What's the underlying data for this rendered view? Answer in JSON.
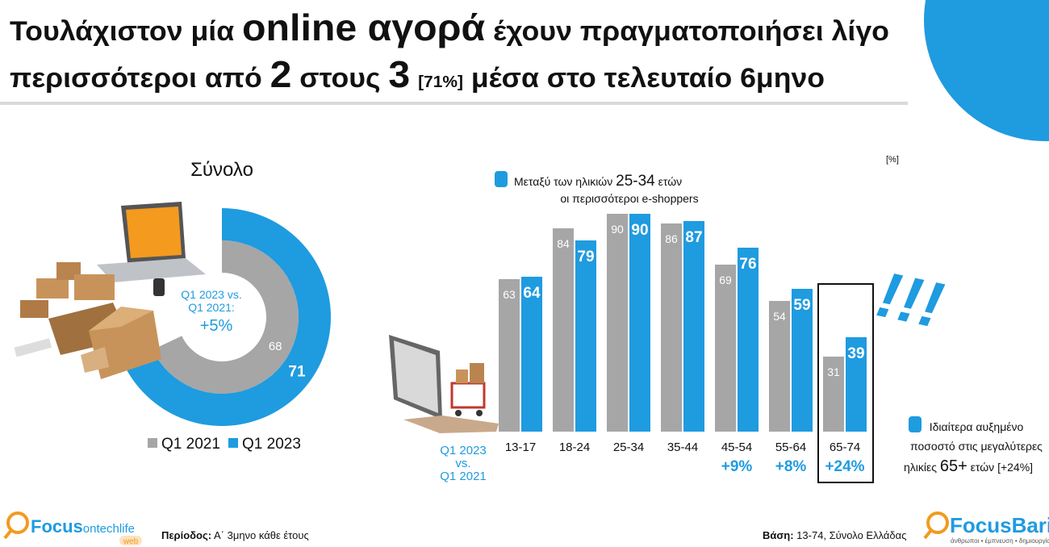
{
  "title": {
    "line1": [
      "Τουλάχιστον μία",
      "online αγορά",
      "έχουν πραγματοποιήσει λίγο"
    ],
    "line2": [
      "περισσότεροι από",
      "2",
      "στους",
      "3",
      "[71%]",
      "μέσα στο τελευταίο 6μηνο"
    ]
  },
  "chart_data": [
    {
      "type": "donut",
      "title": "Σύνολο",
      "ylim": [
        0,
        100
      ],
      "series": [
        {
          "name": "Q1 2021",
          "color": "#a6a6a6",
          "values": [
            68
          ]
        },
        {
          "name": "Q1 2023",
          "color": "#1f9be0",
          "values": [
            71
          ]
        }
      ],
      "annotation": {
        "lines": [
          "Q1 2023 vs.",
          "Q1 2021:"
        ],
        "value": 5,
        "value_label": "+5%"
      }
    },
    {
      "type": "bar",
      "ylim": [
        0,
        100
      ],
      "unit_label": "[%]",
      "categories": [
        "13-17",
        "18-24",
        "25-34",
        "35-44",
        "45-54",
        "55-64",
        "65-74"
      ],
      "series": [
        {
          "color": "#a6a6a6",
          "values": [
            63,
            84,
            90,
            86,
            69,
            54,
            31
          ]
        },
        {
          "color": "#1f9be0",
          "values": [
            64,
            79,
            90,
            87,
            76,
            59,
            39
          ]
        }
      ],
      "change": {
        "lines": [
          "Q1 2023",
          "vs.",
          "Q1 2021"
        ],
        "values": [
          null,
          null,
          null,
          null,
          9,
          8,
          24
        ],
        "value_labels": [
          null,
          null,
          null,
          null,
          "+9%",
          "+8%",
          "+24%"
        ]
      },
      "annotations": [
        {
          "lines": [
            [
              "Μεταξύ των ηλικιών",
              "25-34",
              "ετών"
            ],
            [
              "οι περισσότεροι e-shoppers"
            ]
          ]
        },
        {
          "lines": [
            [
              "Ιδιαίτερα αυξημένο"
            ],
            [
              "ποσοστό στις μεγαλύτερες"
            ],
            [
              "ηλικίες",
              "65+",
              "ετών [+24%]"
            ]
          ]
        }
      ],
      "exclamation": "!!!"
    }
  ],
  "footer": {
    "period": {
      "label": "Περίοδος:",
      "text": "Α΄ 3μηνο κάθε έτους"
    },
    "base": {
      "label": "Βάση:",
      "text": "13-74, Σύνολο Ελλάδας"
    }
  },
  "logos": {
    "left": {
      "brand": "Focus",
      "name": "ontechlife",
      "tag": "web"
    },
    "right": {
      "name": "FocusBari",
      "tagline": "άνθρωποι • έμπνευση • δημιουργία"
    }
  }
}
